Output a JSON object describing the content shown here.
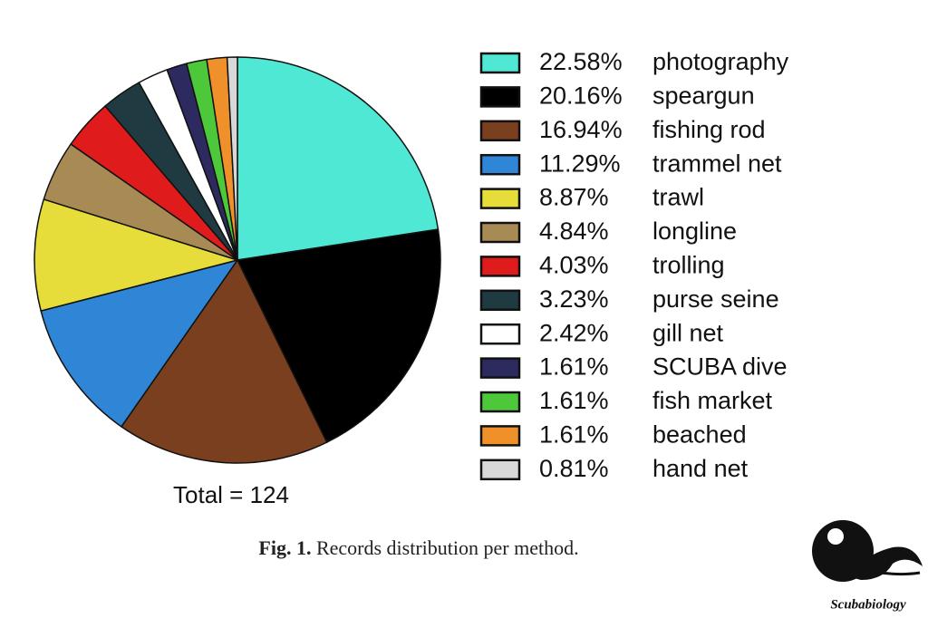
{
  "chart_data": {
    "type": "pie",
    "categories": [
      "photography",
      "speargun",
      "fishing rod",
      "trammel net",
      "trawl",
      "longline",
      "trolling",
      "purse seine",
      "gill net",
      "SCUBA dive",
      "fish market",
      "beached",
      "hand net"
    ],
    "values": [
      22.58,
      20.16,
      16.94,
      11.29,
      8.87,
      4.84,
      4.03,
      3.23,
      2.42,
      1.61,
      1.61,
      1.61,
      0.81
    ],
    "value_labels": [
      "22.58%",
      "20.16%",
      "16.94%",
      "11.29%",
      "8.87%",
      "4.84%",
      "4.03%",
      "3.23%",
      "2.42%",
      "1.61%",
      "1.61%",
      "1.61%",
      "0.81%"
    ],
    "colors": [
      "#4fe8d4",
      "#000000",
      "#7a3f1e",
      "#2f86d6",
      "#e6dc3a",
      "#a88a55",
      "#e01b1b",
      "#1f3a40",
      "#ffffff",
      "#2c2a5e",
      "#4cc83a",
      "#f0902a",
      "#d8d8d8"
    ],
    "annotation": "Total = 124",
    "caption_label": "Fig. 1.",
    "caption_text": "Records distribution per method.",
    "watermark": "Scubabiology"
  }
}
